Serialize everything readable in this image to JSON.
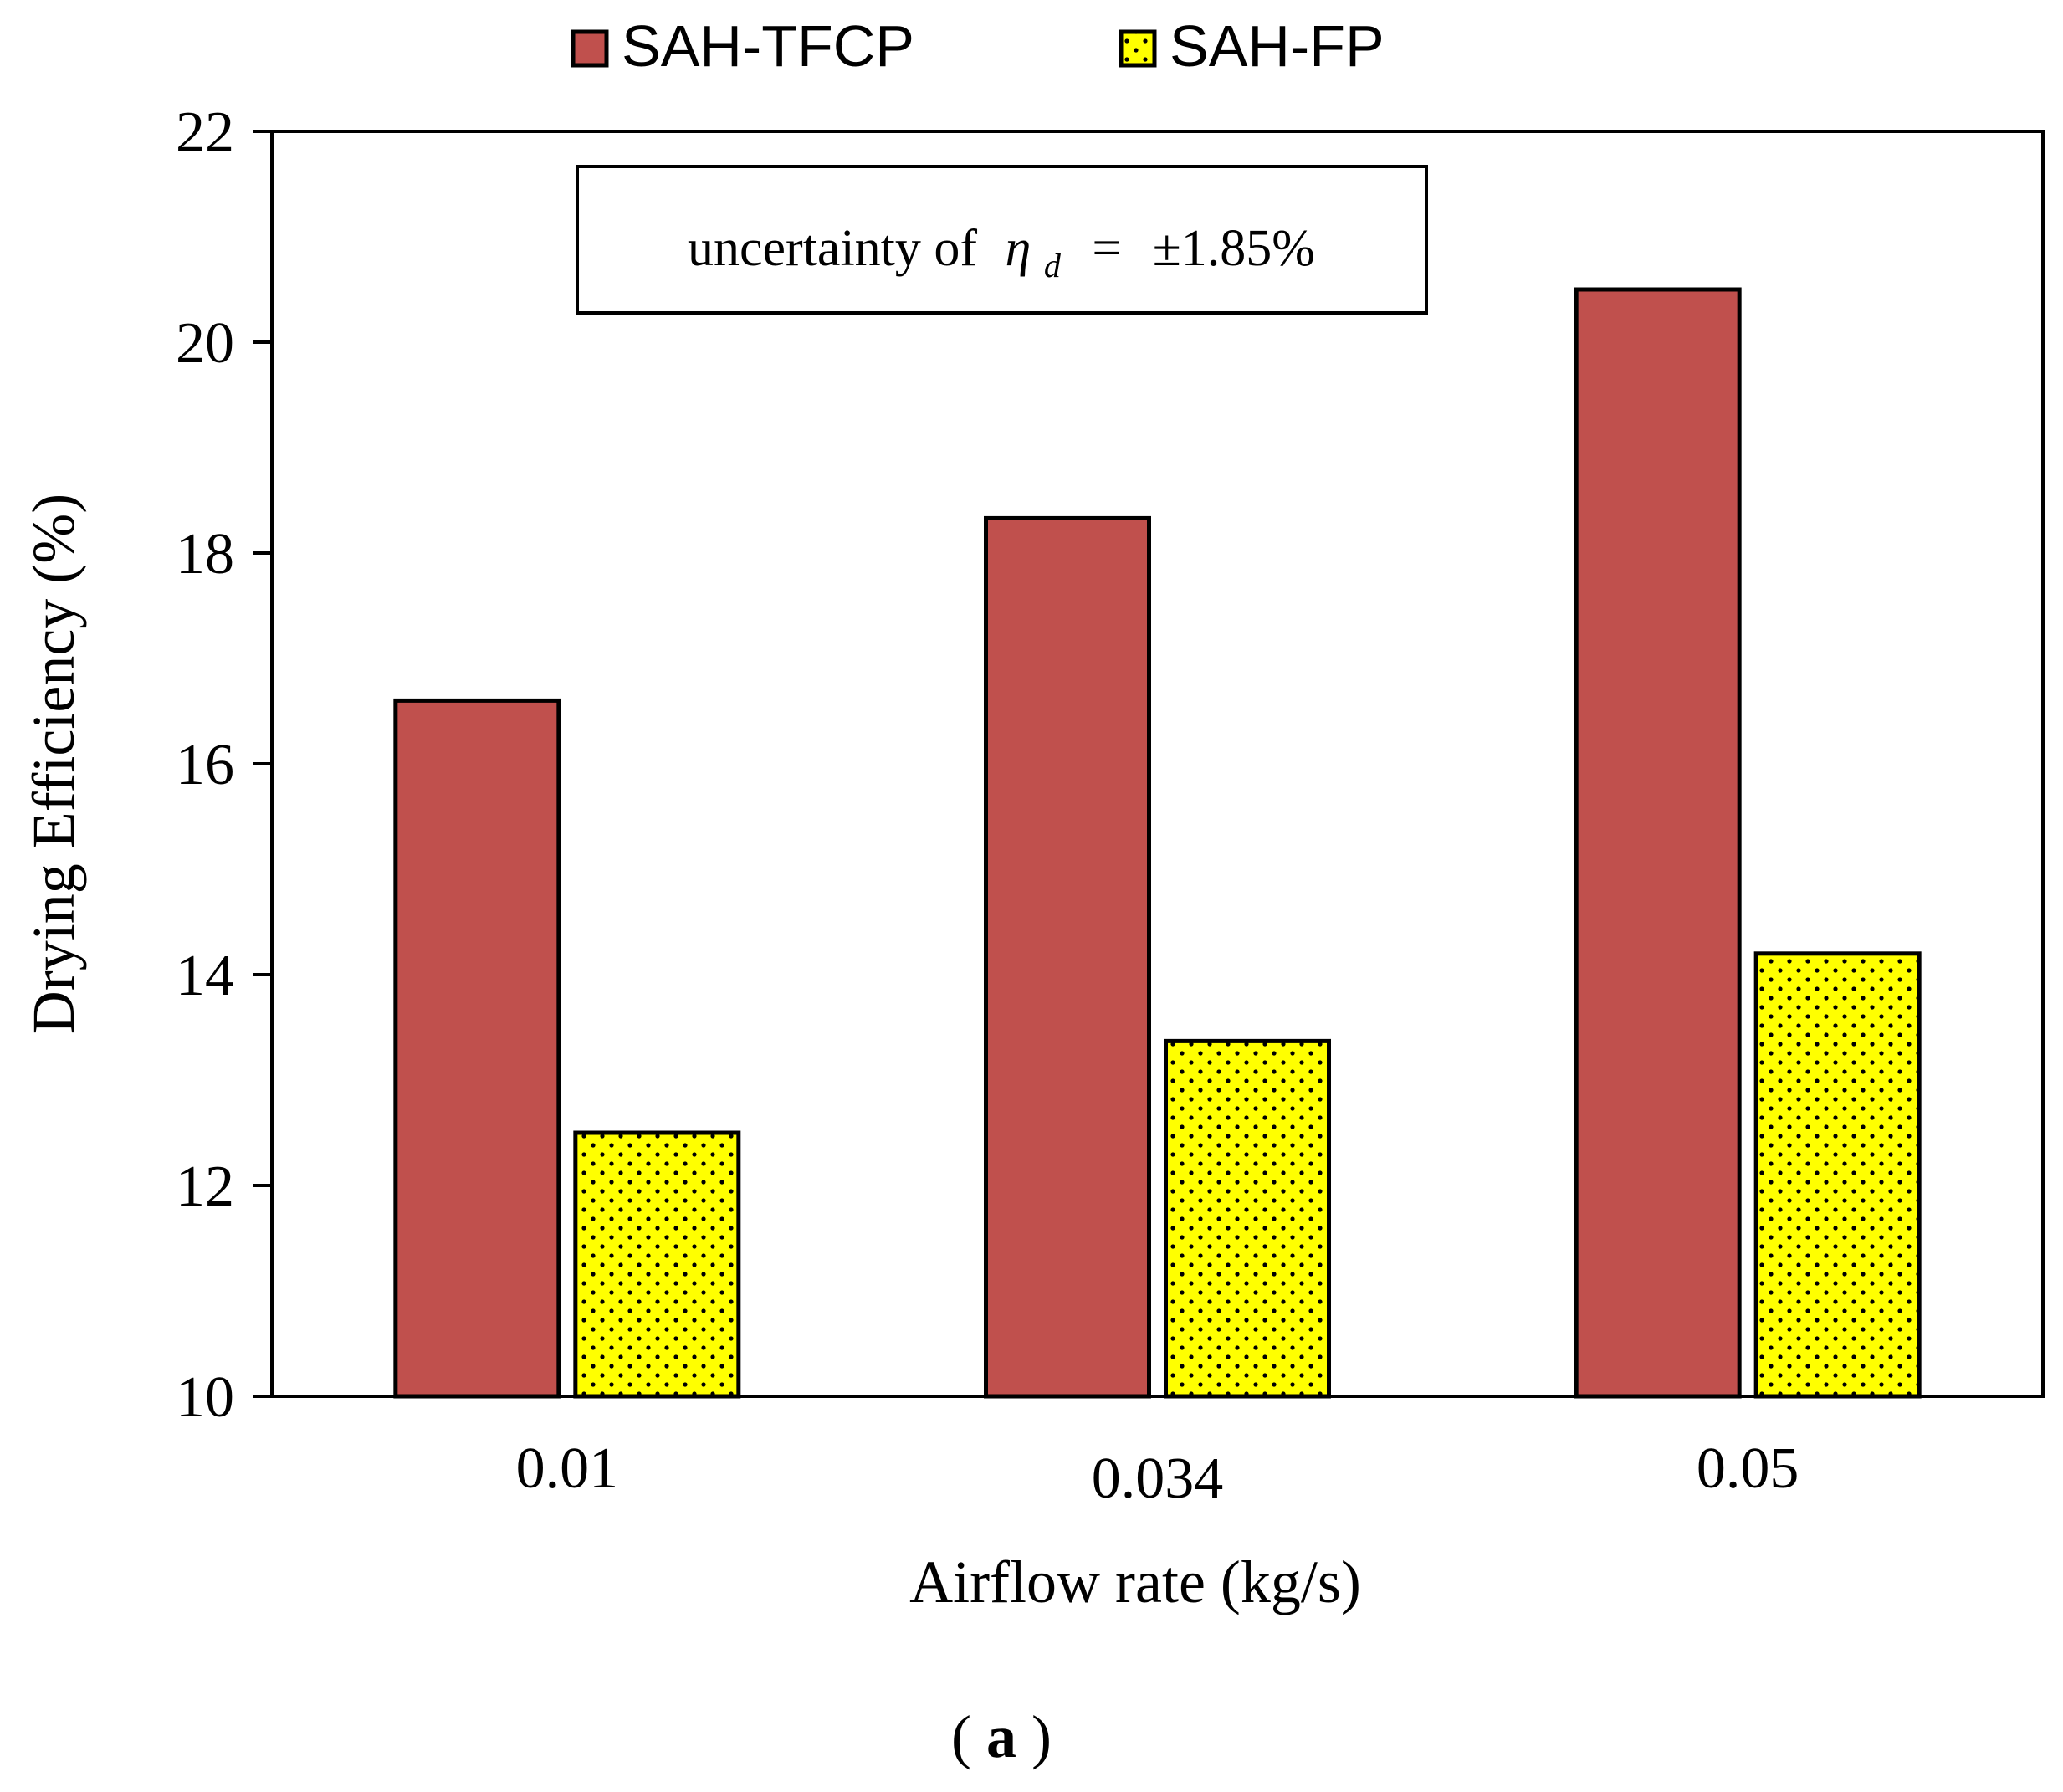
{
  "chart_data": {
    "type": "bar",
    "categories": [
      "0.01",
      "0.034",
      "0.05"
    ],
    "series": [
      {
        "name": "SAH-TFCP",
        "values": [
          16.6,
          18.33,
          20.5
        ],
        "color": "#c0504d",
        "pattern": "solid"
      },
      {
        "name": "SAH-FP",
        "values": [
          12.5,
          13.37,
          14.2
        ],
        "color": "#ffff00",
        "pattern": "dotted"
      }
    ],
    "xlabel": "Airflow rate (kg/s)",
    "ylabel": "Drying Efficiency (%)",
    "ylim": [
      10,
      22
    ],
    "yticks": [
      "10",
      "12",
      "14",
      "16",
      "18",
      "20",
      "22"
    ],
    "grid": false,
    "legend_position": "top-center",
    "annotation": {
      "prefix": "uncertainty of",
      "symbol": "η",
      "subscript": "d",
      "equals": "=",
      "value": "±1.85%"
    },
    "panel_label": {
      "open": "(",
      "letter": "a",
      "close": ")"
    }
  }
}
